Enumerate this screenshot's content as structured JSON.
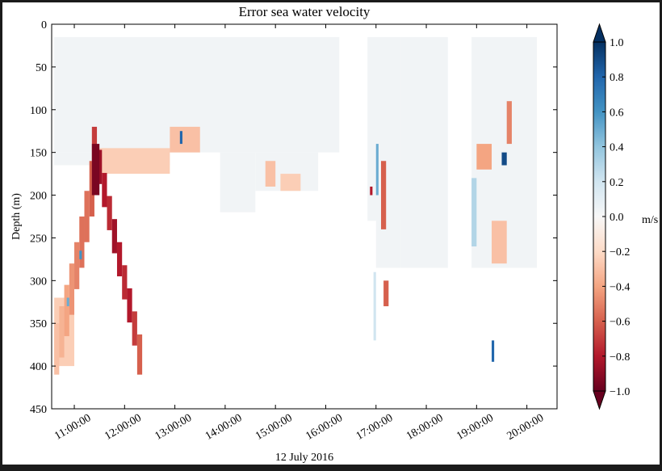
{
  "chart_data": {
    "type": "heatmap",
    "title": "Error sea water velocity",
    "xlabel": "12 July 2016",
    "ylabel": "Depth (m)",
    "colormap": "RdBu",
    "xlim": [
      10.55,
      20.6
    ],
    "xticks": [
      {
        "value": 11,
        "label": "11:00:00"
      },
      {
        "value": 12,
        "label": "12:00:00"
      },
      {
        "value": 13,
        "label": "13:00:00"
      },
      {
        "value": 14,
        "label": "14:00:00"
      },
      {
        "value": 15,
        "label": "15:00:00"
      },
      {
        "value": 16,
        "label": "16:00:00"
      },
      {
        "value": 17,
        "label": "17:00:00"
      },
      {
        "value": 18,
        "label": "18:00:00"
      },
      {
        "value": 19,
        "label": "19:00:00"
      },
      {
        "value": 20,
        "label": "20:00:00"
      }
    ],
    "ylim": [
      450,
      0
    ],
    "yticks": [
      0,
      50,
      100,
      150,
      200,
      250,
      300,
      350,
      400,
      450
    ],
    "colorbar": {
      "label": "m/s",
      "lim": [
        -1,
        1
      ],
      "ticks": [
        {
          "value": 1,
          "label": "1.0"
        },
        {
          "value": 0.8,
          "label": "0.8"
        },
        {
          "value": 0.6,
          "label": "0.6"
        },
        {
          "value": 0.4,
          "label": "0.4"
        },
        {
          "value": 0.2,
          "label": "0.2"
        },
        {
          "value": 0,
          "label": "0.0"
        },
        {
          "value": -0.2,
          "label": "−0.2"
        },
        {
          "value": -0.4,
          "label": "−0.4"
        },
        {
          "value": -0.6,
          "label": "−0.6"
        },
        {
          "value": -0.8,
          "label": "−0.8"
        },
        {
          "value": -1,
          "label": "−1.0"
        }
      ]
    },
    "cells": [
      [
        10.6,
        16.27,
        15,
        150,
        0.03
      ],
      [
        10.6,
        12.9,
        150,
        165,
        0.03
      ],
      [
        13.9,
        14.6,
        150,
        220,
        0.03
      ],
      [
        14.6,
        15.85,
        150,
        195,
        0.03
      ],
      [
        16.83,
        17.5,
        15,
        230,
        0.03
      ],
      [
        17.5,
        18.43,
        15,
        285,
        0.03
      ],
      [
        17.0,
        17.5,
        230,
        285,
        0.03
      ],
      [
        18.9,
        20.2,
        15,
        285,
        0.03
      ],
      [
        11.5,
        12.9,
        145,
        175,
        -0.25
      ],
      [
        10.6,
        11.0,
        320,
        400,
        -0.25
      ],
      [
        10.6,
        10.7,
        350,
        410,
        -0.3
      ],
      [
        10.7,
        10.8,
        330,
        390,
        -0.35
      ],
      [
        10.8,
        10.9,
        305,
        365,
        -0.4
      ],
      [
        10.9,
        11.0,
        280,
        340,
        -0.45
      ],
      [
        11.0,
        11.1,
        255,
        310,
        -0.5
      ],
      [
        11.1,
        11.2,
        225,
        285,
        -0.55
      ],
      [
        11.2,
        11.3,
        195,
        255,
        -0.55
      ],
      [
        11.3,
        11.4,
        160,
        225,
        -0.6
      ],
      [
        11.35,
        11.45,
        120,
        160,
        -0.7
      ],
      [
        11.45,
        11.55,
        147,
        187,
        -0.85
      ],
      [
        11.55,
        11.65,
        174,
        214,
        -0.8
      ],
      [
        11.65,
        11.75,
        201,
        241,
        -0.75
      ],
      [
        11.75,
        11.85,
        228,
        268,
        -0.85
      ],
      [
        11.85,
        11.95,
        255,
        295,
        -0.8
      ],
      [
        11.95,
        12.05,
        282,
        322,
        -0.75
      ],
      [
        12.05,
        12.15,
        309,
        349,
        -0.8
      ],
      [
        12.15,
        12.25,
        336,
        376,
        -0.7
      ],
      [
        12.25,
        12.35,
        363,
        410,
        -0.6
      ],
      [
        11.35,
        11.5,
        140,
        200,
        -0.95
      ],
      [
        11.1,
        11.15,
        265,
        275,
        0.6
      ],
      [
        10.85,
        10.9,
        320,
        330,
        0.5
      ],
      [
        12.9,
        13.5,
        120,
        150,
        -0.3
      ],
      [
        13.1,
        13.15,
        125,
        140,
        0.8
      ],
      [
        14.8,
        15.0,
        160,
        190,
        -0.3
      ],
      [
        15.1,
        15.5,
        175,
        195,
        -0.25
      ],
      [
        16.88,
        16.93,
        190,
        200,
        -0.8
      ],
      [
        17.1,
        17.2,
        160,
        240,
        -0.6
      ],
      [
        17.15,
        17.25,
        300,
        330,
        -0.6
      ],
      [
        17.0,
        17.05,
        140,
        200,
        0.5
      ],
      [
        16.95,
        17.0,
        290,
        370,
        0.2
      ],
      [
        19.0,
        19.3,
        140,
        170,
        -0.4
      ],
      [
        19.3,
        19.6,
        230,
        280,
        -0.3
      ],
      [
        19.5,
        19.6,
        150,
        165,
        0.9
      ],
      [
        19.6,
        19.7,
        90,
        140,
        -0.5
      ],
      [
        19.3,
        19.35,
        370,
        395,
        0.8
      ],
      [
        18.9,
        19.0,
        180,
        260,
        0.3
      ]
    ]
  }
}
